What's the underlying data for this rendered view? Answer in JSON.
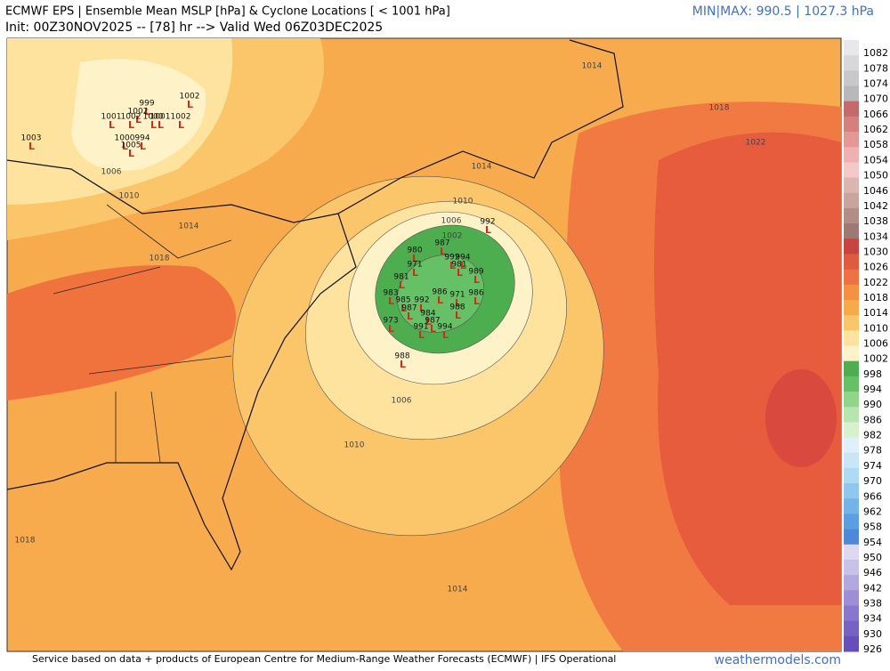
{
  "header": {
    "title": "ECMWF EPS | Ensemble Mean MSLP [hPa] & Cyclone Locations [ < 1001 hPa]",
    "init": "Init: 00Z30NOV2025 -- [78] hr --> Valid Wed 06Z03DEC2025",
    "minmax": "MIN|MAX: 990.5 | 1027.3 hPa"
  },
  "footer": {
    "credit": "Service based on data + products of European Centre for Medium-Range Weather Forecasts (ECMWF) | IFS Operational",
    "brand": "weathermodels.com"
  },
  "colorbar": {
    "levels": [
      1082,
      1078,
      1074,
      1070,
      1066,
      1062,
      1058,
      1054,
      1050,
      1046,
      1042,
      1038,
      1034,
      1030,
      1026,
      1022,
      1018,
      1014,
      1010,
      1006,
      1002,
      998,
      994,
      990,
      986,
      982,
      978,
      974,
      970,
      966,
      962,
      958,
      954,
      950,
      946,
      942,
      938,
      934,
      930,
      926
    ],
    "colors": [
      "#e8e8e8",
      "#d8d8d8",
      "#c8c8c8",
      "#b8b8b8",
      "#c56a6a",
      "#d67f7f",
      "#e39797",
      "#eeb0b0",
      "#f3c8c8",
      "#d9b7b0",
      "#c7a59d",
      "#b08e86",
      "#9a7a72",
      "#c9443f",
      "#e05a3e",
      "#ef7040",
      "#f59040",
      "#f8aa48",
      "#fbc56a",
      "#fde39e",
      "#fef3c8",
      "#4cae4f",
      "#66c066",
      "#8fd68a",
      "#b7e6ad",
      "#d7f1cd",
      "#dff0fb",
      "#c9e5f8",
      "#addaf5",
      "#8fc7ef",
      "#72b3ea",
      "#5b9fe3",
      "#4d89d8",
      "#ddd9f0",
      "#c8c1e8",
      "#b2a8df",
      "#9c8fd6",
      "#8877cd",
      "#7563c4",
      "#6450ba"
    ]
  },
  "contours": [
    "1014",
    "1018",
    "1022",
    "1014",
    "1010",
    "1006",
    "1002",
    "1006",
    "1010",
    "1014",
    "1018",
    "1018",
    "1014",
    "1010",
    "1006"
  ],
  "cyclones": {
    "symbol": "L",
    "labels": [
      "999",
      "1002",
      "1001",
      "1002",
      "1000",
      "1001",
      "1002",
      "1002",
      "1003",
      "1000",
      "1005",
      "994",
      "980",
      "987",
      "971",
      "992",
      "994",
      "981",
      "981",
      "989",
      "971",
      "983",
      "986",
      "986",
      "985",
      "992",
      "987",
      "988",
      "984",
      "973",
      "991",
      "994",
      "987",
      "988",
      "992"
    ]
  }
}
